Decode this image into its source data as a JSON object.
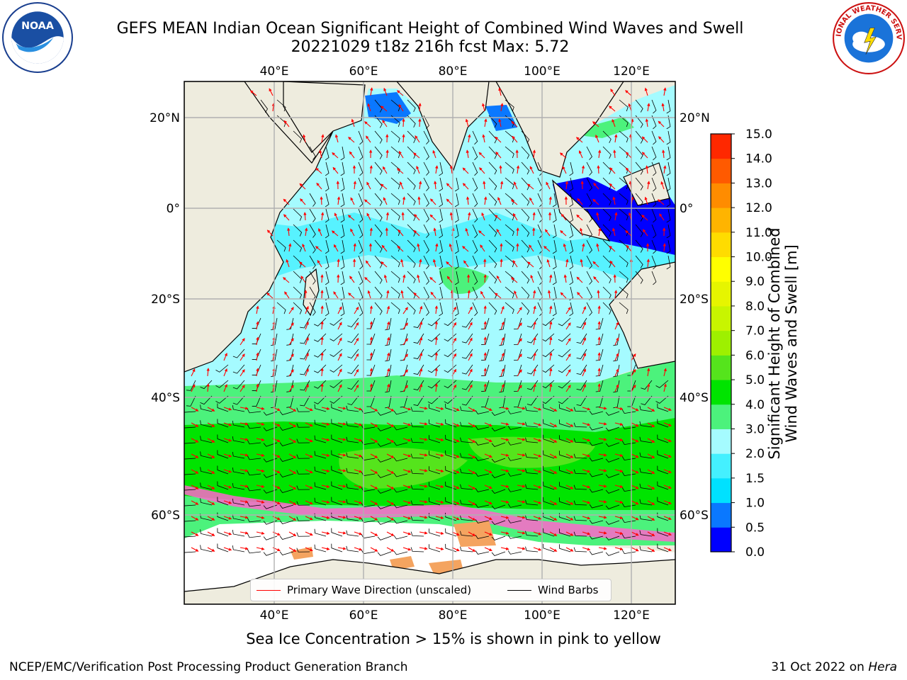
{
  "header": {
    "title_line1": "GEFS MEAN Indian Ocean Significant Height of Combined Wind Waves and Swell",
    "title_line2": "20221029 t18z 216h fcst   Max: 5.72"
  },
  "logos": {
    "left": {
      "icon": "noaa-logo",
      "text": "NOAA"
    },
    "right": {
      "icon": "nws-logo",
      "text": "NATIONAL WEATHER SERVICE"
    }
  },
  "map": {
    "longitude_ticks": [
      "40°E",
      "60°E",
      "80°E",
      "100°E",
      "120°E"
    ],
    "latitude_ticks": [
      "20°N",
      "0°",
      "20°S",
      "40°S",
      "60°S"
    ],
    "extent": {
      "lon": [
        20,
        130
      ],
      "lat": [
        -76,
        27
      ]
    },
    "colors": {
      "land": "#eeecde",
      "grid": "#b0b0b0",
      "wave_direction": "#ff0000",
      "wind_barb": "#000000"
    },
    "legend": [
      {
        "label": "Primary Wave Direction (unscaled)",
        "color": "#ff0000"
      },
      {
        "label": "Wind Barbs",
        "color": "#000000"
      }
    ]
  },
  "colorbar": {
    "label_line1": "Significant Height of Combined",
    "label_line2": "Wind Waves and Swell [m]",
    "tick_labels": [
      "0.0",
      "0.5",
      "1.0",
      "1.5",
      "2.0",
      "3.0",
      "4.0",
      "5.0",
      "6.0",
      "7.0",
      "8.0",
      "9.0",
      "10.0",
      "11.0",
      "12.0",
      "13.0",
      "14.0",
      "15.0"
    ],
    "bin_colors": [
      "#0000ff",
      "#0a78ff",
      "#00e1ff",
      "#44f0ff",
      "#a5fbff",
      "#4cf27c",
      "#00e400",
      "#55e41c",
      "#9ef000",
      "#c8f500",
      "#e6f500",
      "#ffff00",
      "#ffdc00",
      "#ffb400",
      "#ff8c00",
      "#ff5a00",
      "#ff2800"
    ]
  },
  "notes": {
    "sea_ice": "Sea Ice Concentration > 15% is shown in pink to yellow"
  },
  "footer": {
    "left": "NCEP/EMC/Verification Post Processing Product Generation Branch",
    "right_date": "31 Oct 2022 on",
    "right_machine": "Hera"
  }
}
